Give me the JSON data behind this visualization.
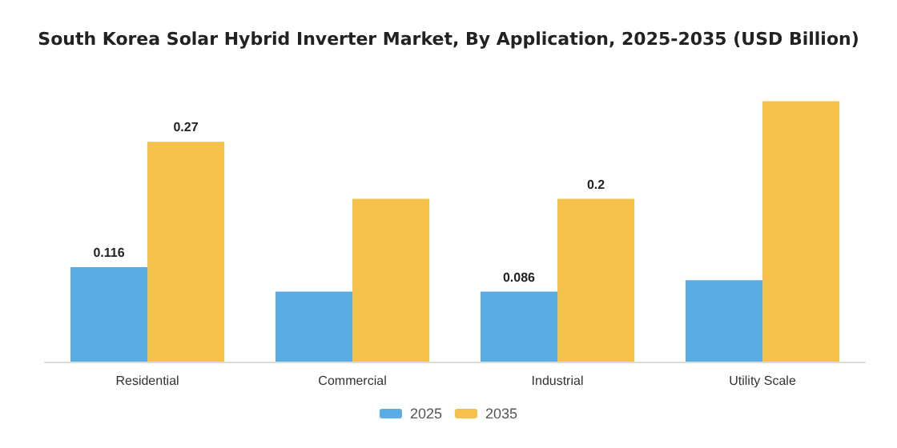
{
  "chart_data": {
    "type": "bar",
    "title": "South Korea Solar Hybrid Inverter Market, By Application, 2025-2035 (USD Billion)",
    "categories": [
      "Residential",
      "Commercial",
      "Industrial",
      "Utility Scale"
    ],
    "series": [
      {
        "name": "2025",
        "color": "#5aade3",
        "values": [
          0.116,
          0.086,
          0.086,
          0.1
        ],
        "value_labels": [
          "0.116",
          null,
          "0.086",
          null
        ]
      },
      {
        "name": "2035",
        "color": "#f5c14b",
        "values": [
          0.27,
          0.2,
          0.2,
          0.32
        ],
        "value_labels": [
          "0.27",
          null,
          "0.2",
          null
        ]
      }
    ],
    "legend": "bottom",
    "grid": false
  }
}
